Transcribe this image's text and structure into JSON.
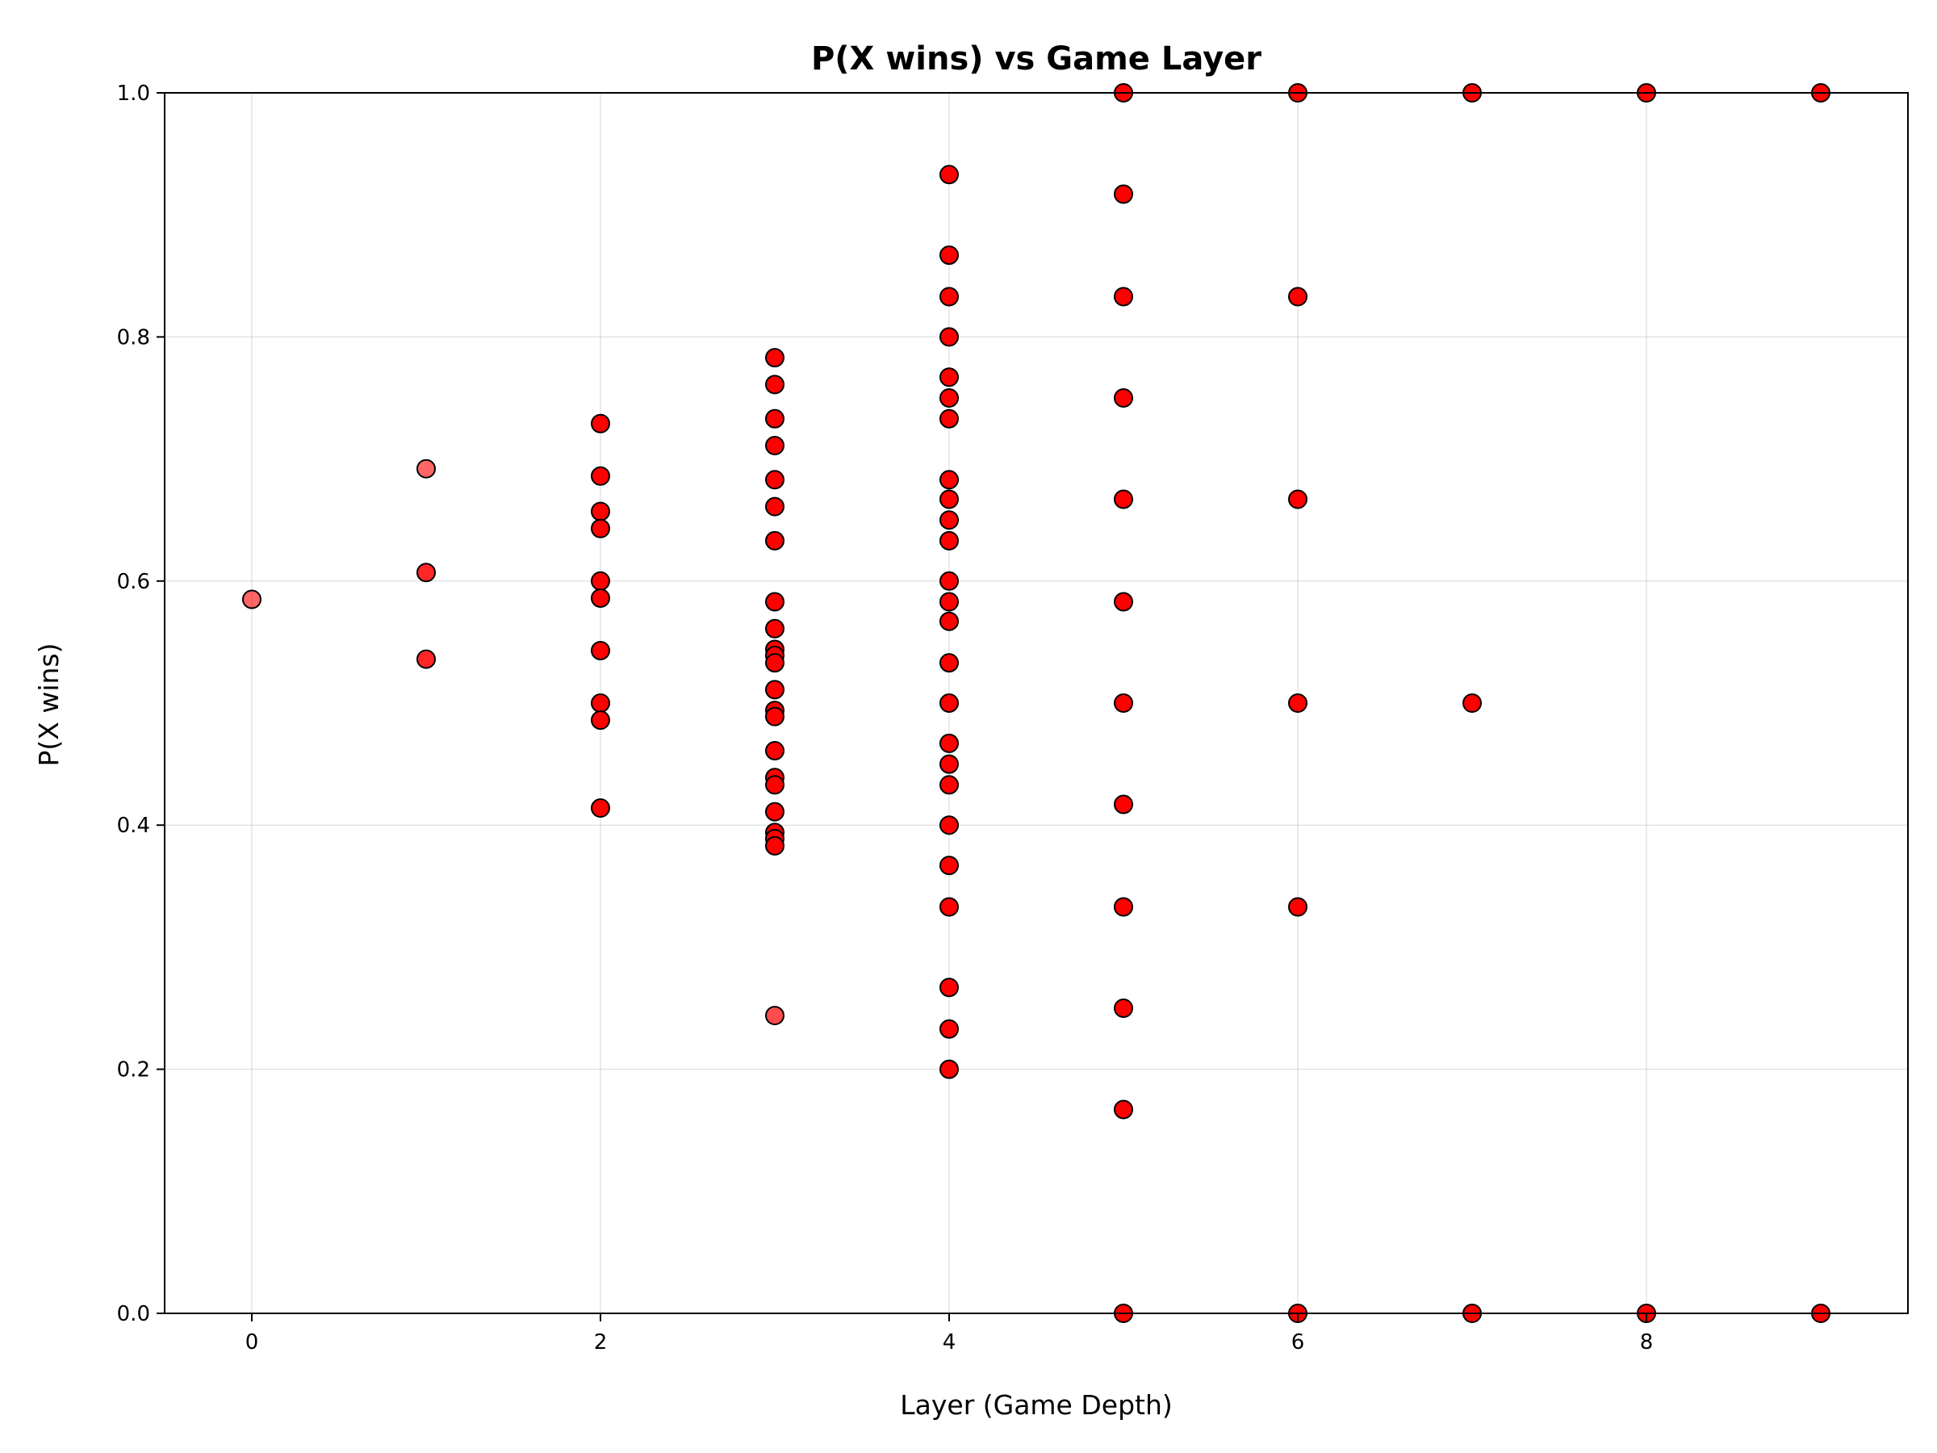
{
  "chart_data": {
    "type": "scatter",
    "title": "P(X wins) vs Game Layer",
    "xlabel": "Layer (Game Depth)",
    "ylabel": "P(X wins)",
    "xlim": [
      -0.5,
      9.5
    ],
    "ylim": [
      0.0,
      1.0
    ],
    "xticks": [
      0,
      2,
      4,
      6,
      8
    ],
    "xtick_labels": [
      "0",
      "2",
      "4",
      "6",
      "8"
    ],
    "yticks": [
      0.0,
      0.2,
      0.4,
      0.6,
      0.8,
      1.0
    ],
    "ytick_labels": [
      "0.0",
      "0.2",
      "0.4",
      "0.6",
      "0.8",
      "1.0"
    ],
    "grid": true,
    "marker_color": "#ff0000",
    "edge_color": "#000000",
    "series": [
      {
        "points": [
          {
            "x": 0,
            "y": 0.585,
            "alpha": 0.6
          },
          {
            "x": 1,
            "y": 0.692,
            "alpha": 0.6
          },
          {
            "x": 1,
            "y": 0.607,
            "alpha": 0.85
          },
          {
            "x": 1,
            "y": 0.536,
            "alpha": 0.85
          },
          {
            "x": 2,
            "y": 0.729
          },
          {
            "x": 2,
            "y": 0.686
          },
          {
            "x": 2,
            "y": 0.657
          },
          {
            "x": 2,
            "y": 0.643
          },
          {
            "x": 2,
            "y": 0.6
          },
          {
            "x": 2,
            "y": 0.586
          },
          {
            "x": 2,
            "y": 0.543
          },
          {
            "x": 2,
            "y": 0.5
          },
          {
            "x": 2,
            "y": 0.486
          },
          {
            "x": 2,
            "y": 0.414
          },
          {
            "x": 3,
            "y": 0.783
          },
          {
            "x": 3,
            "y": 0.761
          },
          {
            "x": 3,
            "y": 0.733
          },
          {
            "x": 3,
            "y": 0.711
          },
          {
            "x": 3,
            "y": 0.683
          },
          {
            "x": 3,
            "y": 0.661
          },
          {
            "x": 3,
            "y": 0.633
          },
          {
            "x": 3,
            "y": 0.583
          },
          {
            "x": 3,
            "y": 0.561
          },
          {
            "x": 3,
            "y": 0.544
          },
          {
            "x": 3,
            "y": 0.539
          },
          {
            "x": 3,
            "y": 0.533
          },
          {
            "x": 3,
            "y": 0.511
          },
          {
            "x": 3,
            "y": 0.494
          },
          {
            "x": 3,
            "y": 0.489
          },
          {
            "x": 3,
            "y": 0.461
          },
          {
            "x": 3,
            "y": 0.439
          },
          {
            "x": 3,
            "y": 0.433
          },
          {
            "x": 3,
            "y": 0.411
          },
          {
            "x": 3,
            "y": 0.394
          },
          {
            "x": 3,
            "y": 0.389
          },
          {
            "x": 3,
            "y": 0.383
          },
          {
            "x": 3,
            "y": 0.244,
            "alpha": 0.7
          },
          {
            "x": 4,
            "y": 0.933
          },
          {
            "x": 4,
            "y": 0.867
          },
          {
            "x": 4,
            "y": 0.833
          },
          {
            "x": 4,
            "y": 0.8
          },
          {
            "x": 4,
            "y": 0.767
          },
          {
            "x": 4,
            "y": 0.75
          },
          {
            "x": 4,
            "y": 0.733
          },
          {
            "x": 4,
            "y": 0.683
          },
          {
            "x": 4,
            "y": 0.667
          },
          {
            "x": 4,
            "y": 0.65
          },
          {
            "x": 4,
            "y": 0.633
          },
          {
            "x": 4,
            "y": 0.6
          },
          {
            "x": 4,
            "y": 0.583
          },
          {
            "x": 4,
            "y": 0.567
          },
          {
            "x": 4,
            "y": 0.533
          },
          {
            "x": 4,
            "y": 0.5
          },
          {
            "x": 4,
            "y": 0.467
          },
          {
            "x": 4,
            "y": 0.45
          },
          {
            "x": 4,
            "y": 0.433
          },
          {
            "x": 4,
            "y": 0.4
          },
          {
            "x": 4,
            "y": 0.367
          },
          {
            "x": 4,
            "y": 0.333
          },
          {
            "x": 4,
            "y": 0.267
          },
          {
            "x": 4,
            "y": 0.233
          },
          {
            "x": 4,
            "y": 0.2
          },
          {
            "x": 5,
            "y": 1.0
          },
          {
            "x": 5,
            "y": 0.917
          },
          {
            "x": 5,
            "y": 0.833
          },
          {
            "x": 5,
            "y": 0.75
          },
          {
            "x": 5,
            "y": 0.667
          },
          {
            "x": 5,
            "y": 0.583
          },
          {
            "x": 5,
            "y": 0.5
          },
          {
            "x": 5,
            "y": 0.417
          },
          {
            "x": 5,
            "y": 0.333
          },
          {
            "x": 5,
            "y": 0.25
          },
          {
            "x": 5,
            "y": 0.167
          },
          {
            "x": 5,
            "y": 0.0
          },
          {
            "x": 6,
            "y": 1.0
          },
          {
            "x": 6,
            "y": 0.833
          },
          {
            "x": 6,
            "y": 0.667
          },
          {
            "x": 6,
            "y": 0.5
          },
          {
            "x": 6,
            "y": 0.333
          },
          {
            "x": 6,
            "y": 0.0
          },
          {
            "x": 7,
            "y": 1.0
          },
          {
            "x": 7,
            "y": 0.5
          },
          {
            "x": 7,
            "y": 0.0
          },
          {
            "x": 8,
            "y": 1.0
          },
          {
            "x": 8,
            "y": 0.0
          },
          {
            "x": 9,
            "y": 1.0
          },
          {
            "x": 9,
            "y": 0.0
          }
        ]
      }
    ]
  }
}
